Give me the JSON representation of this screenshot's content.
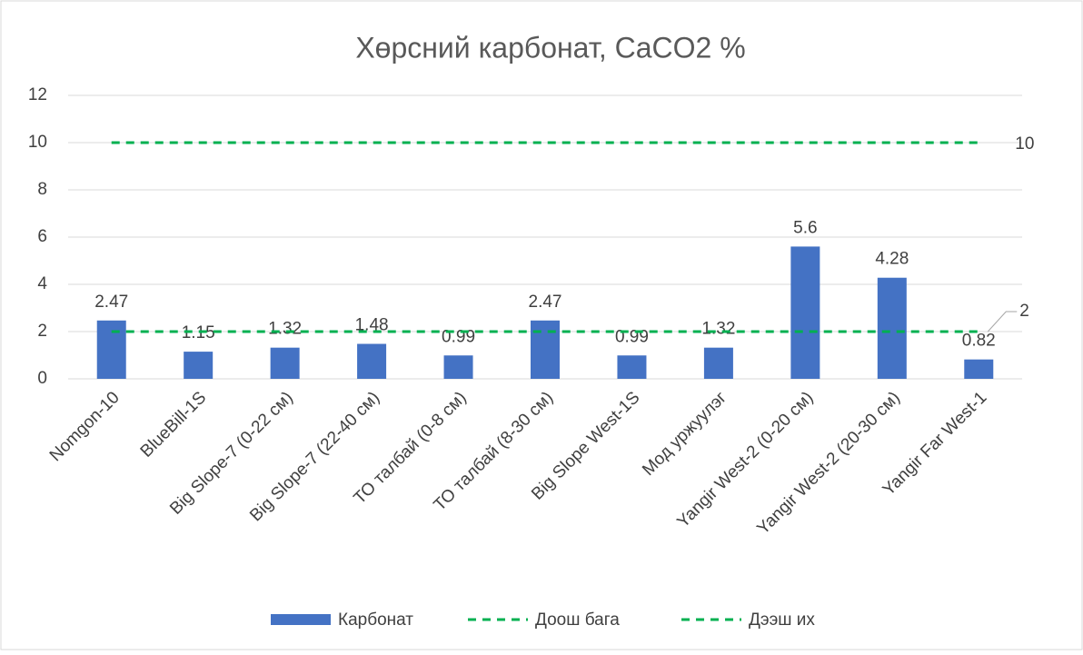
{
  "chart_data": {
    "type": "bar",
    "title": "Хөрсний карбонат, CaCO2 %",
    "categories": [
      "Nomgon-10",
      "BlueBill-1S",
      "Big Slope-7 (0-22 см)",
      "Big Slope-7 (22-40 см)",
      "ТО талбай (0-8 см)",
      "ТО талбай (8-30 см)",
      "Big Slope West-1S",
      "Мод уржуулэг",
      "Yangir West-2 (0-20 см)",
      "Yangir West-2 (20-30 см)",
      "Yangir Far West-1"
    ],
    "series": [
      {
        "name": "Карбонат",
        "type": "bar",
        "color": "#4472c4",
        "values": [
          2.47,
          1.15,
          1.32,
          1.48,
          0.99,
          2.47,
          0.99,
          1.32,
          5.6,
          4.28,
          0.82
        ]
      },
      {
        "name": "Доош бага",
        "type": "line",
        "dashed": true,
        "color": "#00b050",
        "values": [
          2,
          2,
          2,
          2,
          2,
          2,
          2,
          2,
          2,
          2,
          2
        ]
      },
      {
        "name": "Дээш их",
        "type": "line",
        "dashed": true,
        "color": "#00b050",
        "values": [
          10,
          10,
          10,
          10,
          10,
          10,
          10,
          10,
          10,
          10,
          10
        ]
      }
    ],
    "ylim": [
      0,
      12
    ],
    "yticks": [
      0,
      2,
      4,
      6,
      8,
      10,
      12
    ],
    "grid": true,
    "legend": "bottom"
  }
}
